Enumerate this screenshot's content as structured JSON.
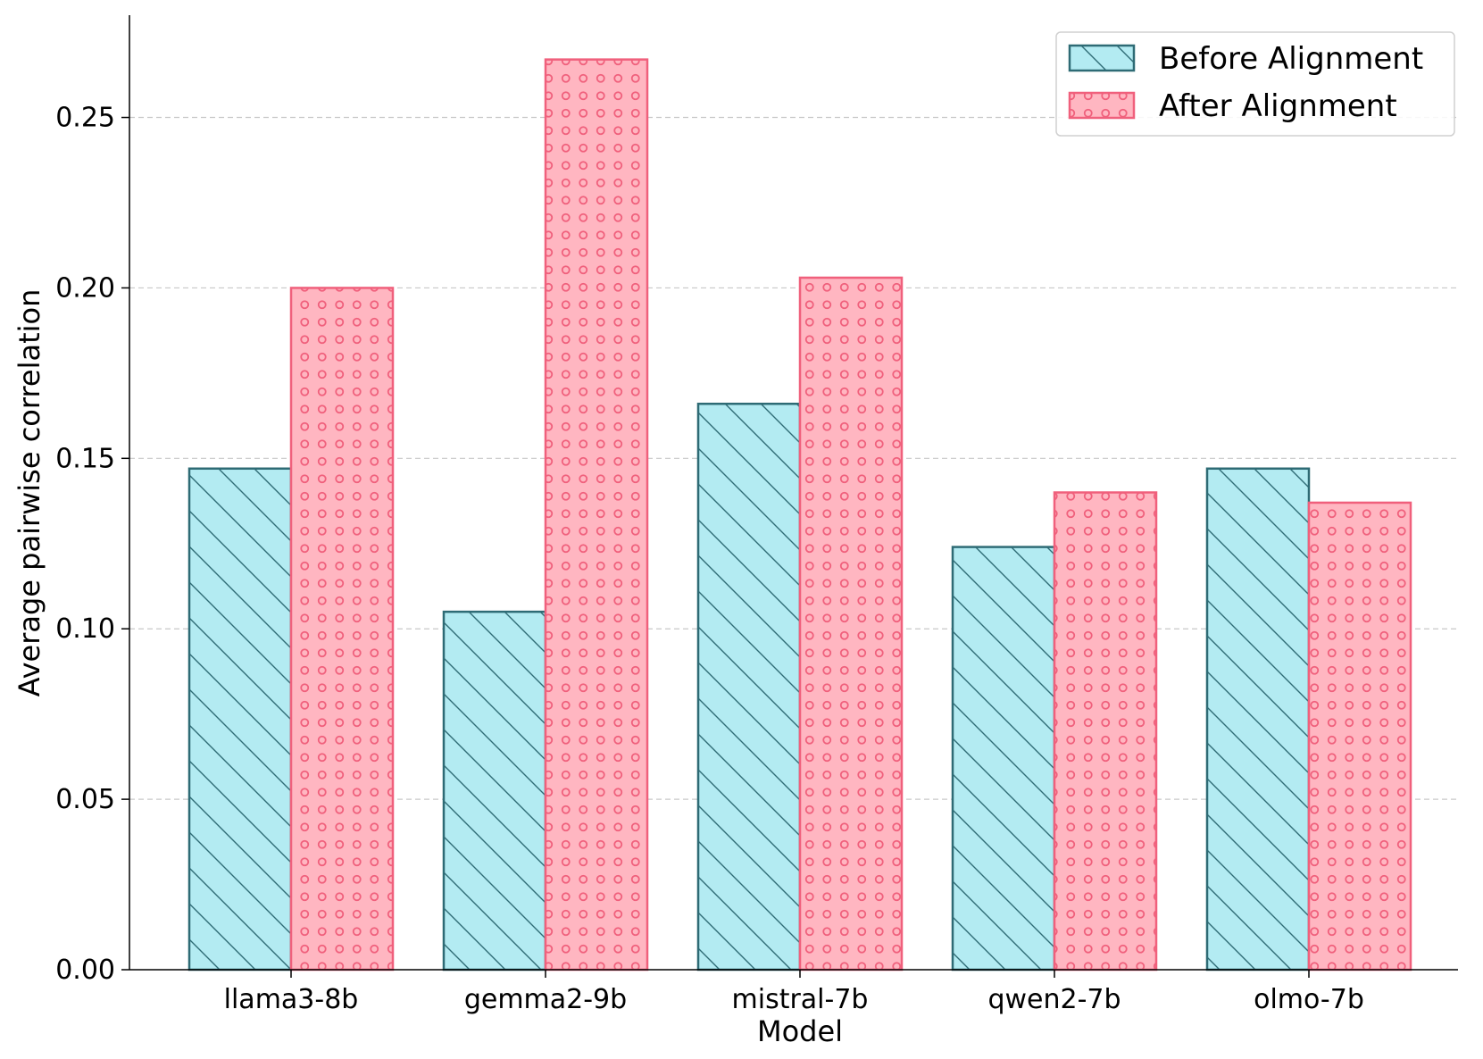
{
  "chart_data": {
    "type": "bar",
    "title": "",
    "xlabel": "Model",
    "ylabel": "Average pairwise correlation",
    "categories": [
      "llama3-8b",
      "gemma2-9b",
      "mistral-7b",
      "qwen2-7b",
      "olmo-7b"
    ],
    "series": [
      {
        "name": "Before Alignment",
        "values": [
          0.147,
          0.105,
          0.166,
          0.124,
          0.147
        ],
        "fill": "#b3ebf2",
        "edge": "#2e6b75",
        "hatch": "diagonal"
      },
      {
        "name": "After Alignment",
        "values": [
          0.2,
          0.267,
          0.203,
          0.14,
          0.137
        ],
        "fill": "#ffb6c1",
        "edge": "#f0607c",
        "hatch": "circles"
      }
    ],
    "ylim": [
      0,
      0.28
    ],
    "yticks": [
      "0.00",
      "0.05",
      "0.10",
      "0.15",
      "0.20",
      "0.25"
    ],
    "grid": "y dashed",
    "legend_position": "top-right"
  }
}
